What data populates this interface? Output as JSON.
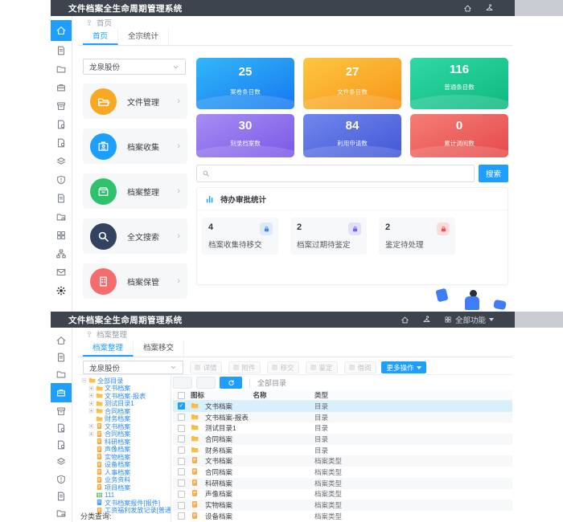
{
  "app": {
    "title": "文件档案全生命周期管理系统",
    "accent": "#1e9fff",
    "header_bg": "#3d444d"
  },
  "top": {
    "header_icons": [
      {
        "icon": "home"
      },
      {
        "icon": "hanger"
      }
    ],
    "sidebar": [
      {
        "icon": "home",
        "active": true
      },
      {
        "icon": "doc"
      },
      {
        "icon": "folder"
      },
      {
        "icon": "briefcase"
      },
      {
        "icon": "archive"
      },
      {
        "icon": "docb"
      },
      {
        "icon": "docb"
      },
      {
        "icon": "layers"
      },
      {
        "icon": "shield"
      },
      {
        "icon": "doc"
      },
      {
        "icon": "foldg"
      },
      {
        "icon": "grid"
      },
      {
        "icon": "sitemap"
      },
      {
        "icon": "mail"
      },
      {
        "icon": "gear",
        "dark": true
      }
    ],
    "breadcrumb": "首页",
    "tabs": [
      {
        "label": "首页",
        "active": true
      },
      {
        "label": "全宗统计",
        "active": false
      }
    ],
    "org_select": "龙泉股份",
    "menu": [
      {
        "label": "文件管理",
        "icon": "folder2",
        "color": "#f7a924"
      },
      {
        "label": "档案收集",
        "icon": "idcard",
        "color": "#1e9fff"
      },
      {
        "label": "档案整理",
        "icon": "box",
        "color": "#2dc26b"
      },
      {
        "label": "全文搜索",
        "icon": "search",
        "color": "#33425f"
      },
      {
        "label": "档案保管",
        "icon": "building",
        "color": "#f56c6c"
      }
    ],
    "stats": [
      {
        "value": "25",
        "label": "案卷条目数",
        "gradient": "linear-gradient(155deg,#33b7f8,#1677f0)"
      },
      {
        "value": "27",
        "label": "文件条目数",
        "gradient": "linear-gradient(155deg,#fdc741,#f79417)"
      },
      {
        "value": "116",
        "label": "普通条目数",
        "gradient": "linear-gradient(155deg,#30d9a5,#0eb87e)"
      },
      {
        "value": "30",
        "label": "刻录档案数",
        "gradient": "linear-gradient(155deg,#a78df3,#7a58e6)"
      },
      {
        "value": "84",
        "label": "利用申请数",
        "gradient": "linear-gradient(155deg,#7287ec,#4257d6)"
      },
      {
        "value": "0",
        "label": "累计调阅数",
        "gradient": "linear-gradient(155deg,#f47f74,#e5494b)"
      }
    ],
    "search": {
      "placeholder": "",
      "button": "搜索"
    },
    "pending": {
      "title": "待办审批统计",
      "cards": [
        {
          "value": "4",
          "label": "档案收集待移交",
          "bg": "#dce9fd",
          "fg": "#4d86ef"
        },
        {
          "value": "2",
          "label": "档案过期待鉴定",
          "bg": "#e3defc",
          "fg": "#7463ee"
        },
        {
          "value": "2",
          "label": "鉴定待处理",
          "bg": "#fcdbdb",
          "fg": "#ef5350"
        }
      ]
    }
  },
  "bottom": {
    "header_icons": [
      {
        "icon": "home"
      },
      {
        "icon": "hanger"
      }
    ],
    "all_functions": "全部功能",
    "sidebar": [
      {
        "icon": "home"
      },
      {
        "icon": "doc"
      },
      {
        "icon": "folder"
      },
      {
        "icon": "briefcase",
        "active": true
      },
      {
        "icon": "archive"
      },
      {
        "icon": "docb"
      },
      {
        "icon": "docb"
      },
      {
        "icon": "layers"
      },
      {
        "icon": "shield"
      },
      {
        "icon": "doc"
      },
      {
        "icon": "foldg"
      }
    ],
    "breadcrumb": "档案整理",
    "tabs": [
      {
        "label": "档案整理",
        "active": true
      },
      {
        "label": "档案移交",
        "active": false
      }
    ],
    "org_select": "龙泉股份",
    "toolbar": [
      {
        "label": "详情"
      },
      {
        "label": "附件"
      },
      {
        "label": "移交"
      },
      {
        "label": "鉴定"
      },
      {
        "label": "借阅"
      }
    ],
    "more_button": "更多操作",
    "tree": {
      "nodes": [
        {
          "label": "全部目录",
          "icon": "f-folder",
          "exp": "minusbox",
          "depth": 0
        },
        {
          "label": "文书档案",
          "icon": "f-folder",
          "exp": "plusbox",
          "depth": 1
        },
        {
          "label": "文书档案-报表",
          "icon": "f-folder",
          "exp": "plusbox",
          "depth": 1
        },
        {
          "label": "测试目录1",
          "icon": "f-folder",
          "exp": "plusbox",
          "depth": 1
        },
        {
          "label": "合同档案",
          "icon": "f-folder",
          "exp": "plusbox",
          "depth": 1
        },
        {
          "label": "财务档案",
          "icon": "f-folder",
          "exp": "",
          "depth": 1
        },
        {
          "label": "文书档案",
          "icon": "f-box",
          "exp": "plusbox",
          "depth": 1
        },
        {
          "label": "合同档案",
          "icon": "f-box",
          "exp": "plusbox",
          "depth": 1
        },
        {
          "label": "科研档案",
          "icon": "f-box",
          "exp": "",
          "depth": 1
        },
        {
          "label": "声像档案",
          "icon": "f-box",
          "exp": "",
          "depth": 1
        },
        {
          "label": "实物档案",
          "icon": "f-box",
          "exp": "",
          "depth": 1
        },
        {
          "label": "设备档案",
          "icon": "f-box",
          "exp": "",
          "depth": 1
        },
        {
          "label": "人事档案",
          "icon": "f-box",
          "exp": "",
          "depth": 1
        },
        {
          "label": "业务资料",
          "icon": "f-box",
          "exp": "",
          "depth": 1
        },
        {
          "label": "项目档案",
          "icon": "f-box",
          "exp": "",
          "depth": 1
        },
        {
          "label": "111",
          "icon": "f-grid",
          "exp": "",
          "depth": 1
        },
        {
          "label": "文书档案报件[报件]",
          "icon": "f-doc",
          "exp": "",
          "depth": 1
        },
        {
          "label": "工资福利发放记录[普通]",
          "icon": "f-box",
          "exp": "",
          "depth": 1
        }
      ],
      "footer": "分类查询:"
    },
    "table": {
      "path": "全部目录",
      "columns": [
        "图标",
        "名称",
        "类型"
      ],
      "rows": [
        {
          "icon": "f-folder",
          "name": "文书档案",
          "type": "目录",
          "checked": true
        },
        {
          "icon": "f-folder",
          "name": "文书档案-报表",
          "type": "目录",
          "checked": false
        },
        {
          "icon": "f-folder",
          "name": "测试目录1",
          "type": "目录",
          "checked": false
        },
        {
          "icon": "f-folder",
          "name": "合同档案",
          "type": "目录",
          "checked": false
        },
        {
          "icon": "f-folder",
          "name": "财务档案",
          "type": "目录",
          "checked": false
        },
        {
          "icon": "f-box",
          "name": "文书档案",
          "type": "档案类型",
          "checked": false
        },
        {
          "icon": "f-box",
          "name": "合同档案",
          "type": "档案类型",
          "checked": false
        },
        {
          "icon": "f-box",
          "name": "科研档案",
          "type": "档案类型",
          "checked": false
        },
        {
          "icon": "f-box",
          "name": "声像档案",
          "type": "档案类型",
          "checked": false
        },
        {
          "icon": "f-box",
          "name": "实物档案",
          "type": "档案类型",
          "checked": false
        },
        {
          "icon": "f-box",
          "name": "设备档案",
          "type": "档案类型",
          "checked": false
        }
      ]
    }
  }
}
